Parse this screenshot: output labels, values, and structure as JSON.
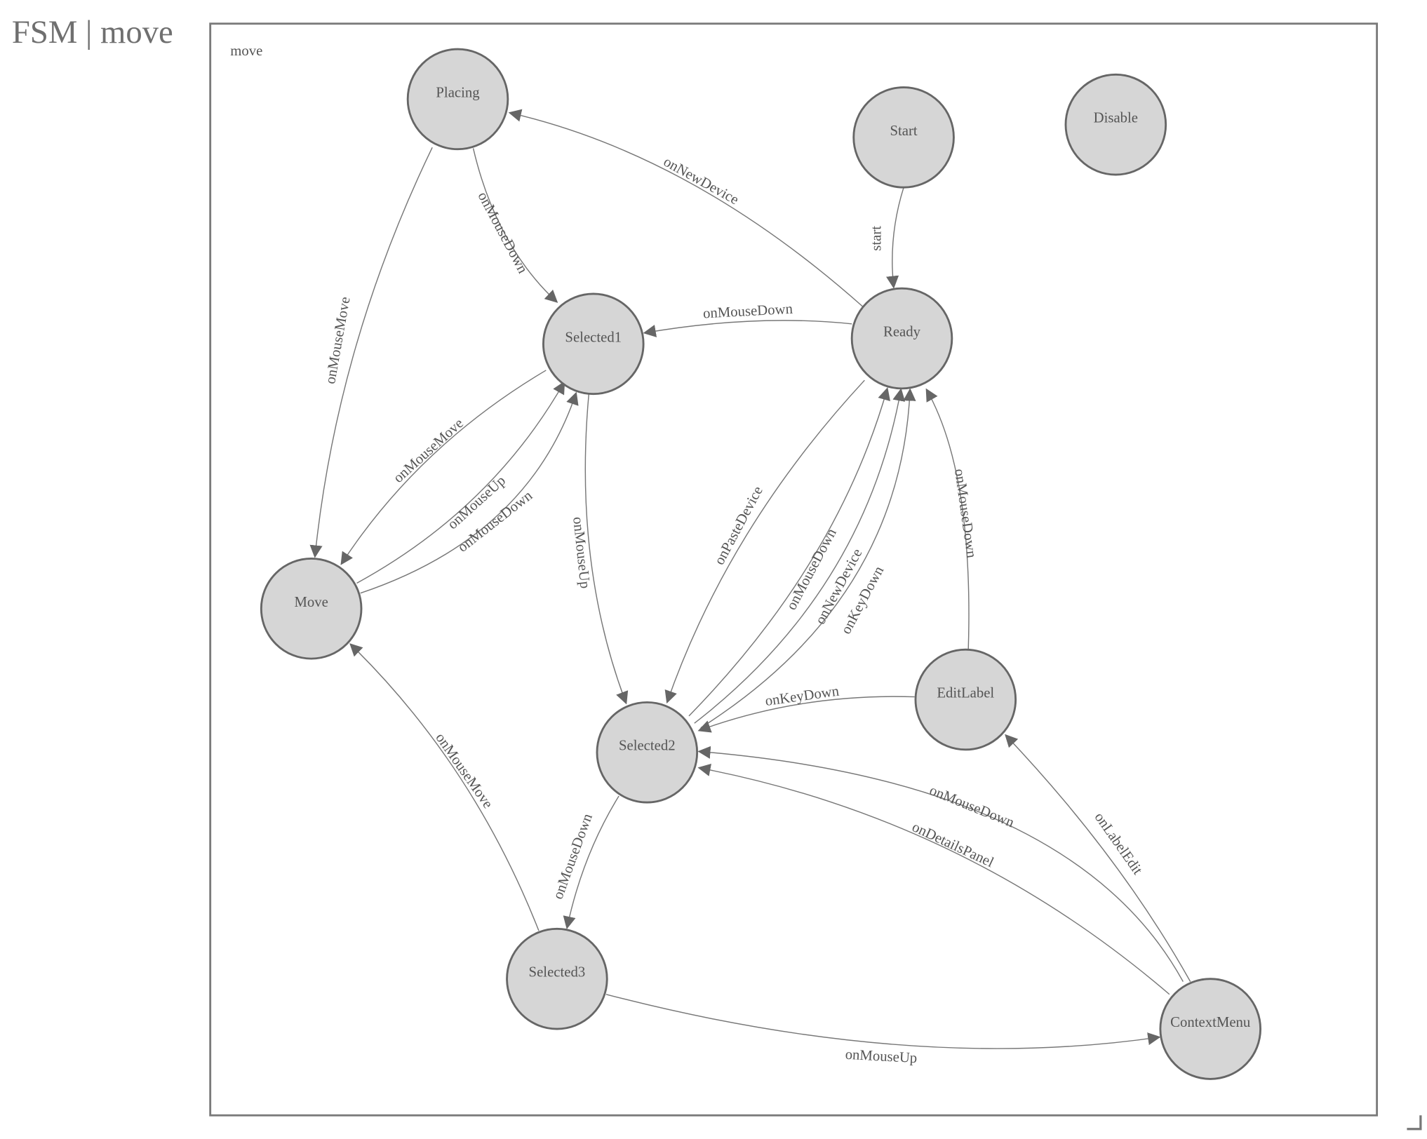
{
  "title": "FSM | move",
  "group_label": "move",
  "nodes": {
    "Placing": "Placing",
    "Start": "Start",
    "Disable": "Disable",
    "Selected1": "Selected1",
    "Ready": "Ready",
    "Move": "Move",
    "Selected2": "Selected2",
    "EditLabel": "EditLabel",
    "Selected3": "Selected3",
    "ContextMenu": "ContextMenu"
  },
  "edges": [
    {
      "from": "Start",
      "to": "Ready",
      "label": "start"
    },
    {
      "from": "Ready",
      "to": "Placing",
      "label": "onNewDevice"
    },
    {
      "from": "Ready",
      "to": "Selected1",
      "label": "onMouseDown"
    },
    {
      "from": "Placing",
      "to": "Selected1",
      "label": "onMouseDown"
    },
    {
      "from": "Placing",
      "to": "Move",
      "label": "onMouseMove"
    },
    {
      "from": "Selected1",
      "to": "Move",
      "label": "onMouseMove"
    },
    {
      "from": "Move",
      "to": "Selected1",
      "label": "onMouseUp"
    },
    {
      "from": "Move",
      "to": "Selected1",
      "label": "onMouseDown"
    },
    {
      "from": "Selected1",
      "to": "Selected2",
      "label": "onMouseUp"
    },
    {
      "from": "Ready",
      "to": "Selected2",
      "label": "onPasteDevice"
    },
    {
      "from": "Selected2",
      "to": "Ready",
      "label": "onMouseDown"
    },
    {
      "from": "Selected2",
      "to": "Ready",
      "label": "onNewDevice"
    },
    {
      "from": "Selected2",
      "to": "Ready",
      "label": "onKeyDown"
    },
    {
      "from": "EditLabel",
      "to": "Ready",
      "label": "onMouseDown"
    },
    {
      "from": "EditLabel",
      "to": "Selected2",
      "label": "onKeyDown"
    },
    {
      "from": "ContextMenu",
      "to": "Selected2",
      "label": "onMouseDown"
    },
    {
      "from": "ContextMenu",
      "to": "Selected2",
      "label": "onDetailsPanel"
    },
    {
      "from": "ContextMenu",
      "to": "EditLabel",
      "label": "onLabelEdit"
    },
    {
      "from": "Selected2",
      "to": "Selected3",
      "label": "onMouseDown"
    },
    {
      "from": "Selected3",
      "to": "Move",
      "label": "onMouseMove"
    },
    {
      "from": "Selected3",
      "to": "ContextMenu",
      "label": "onMouseUp"
    }
  ],
  "colors": {
    "node_fill": "#d6d6d6",
    "node_stroke": "#666666",
    "edge": "#777777",
    "text": "#555555"
  }
}
